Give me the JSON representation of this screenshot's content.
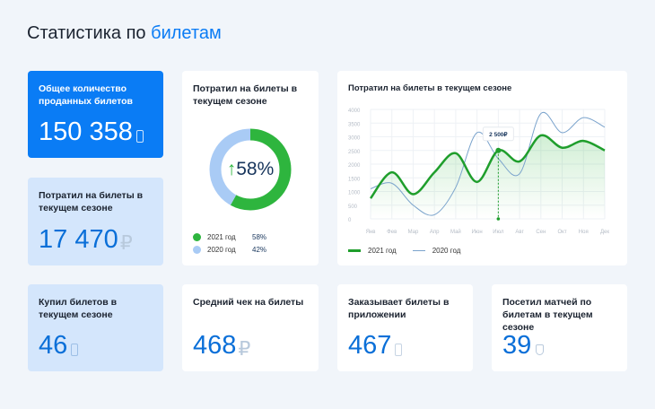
{
  "title": {
    "text": "Статистика по",
    "accent": "билетам"
  },
  "cards": {
    "total": {
      "label": "Общее количество проданных билетов",
      "value": "150 358",
      "icon": "ticket-icon"
    },
    "spent": {
      "label": "Потратил на билеты в текущем сезоне",
      "value": "17 470",
      "unit": "₽"
    },
    "bought": {
      "label": "Купил билетов в текущем сезоне",
      "value": "46",
      "icon": "ticket-icon"
    },
    "avg": {
      "label": "Средний чек на билеты",
      "value": "468",
      "unit": "₽"
    },
    "app": {
      "label": "Заказывает билеты в приложении",
      "value": "467",
      "icon": "ticket-icon"
    },
    "matches": {
      "label": "Посетил матчей по билетам в текущем сезоне",
      "value": "39",
      "icon": "shield-icon"
    }
  },
  "donut": {
    "label": "Потратил на билеты в текущем сезоне",
    "center": "58%",
    "legend": [
      {
        "name": "2021 год",
        "value": "58%",
        "pct": 58,
        "color": "#2eb53e"
      },
      {
        "name": "2020 год",
        "value": "42%",
        "pct": 42,
        "color": "#a9cbf5"
      }
    ]
  },
  "chart_data": {
    "type": "line",
    "title": "Потратил на билеты в текущем сезоне",
    "categories": [
      "Янв",
      "Фев",
      "Мар",
      "Апр",
      "Май",
      "Июн",
      "Июл",
      "Авг",
      "Сен",
      "Окт",
      "Ноя",
      "Дек"
    ],
    "ylim": [
      0,
      4000
    ],
    "yticks": [
      "0",
      "500",
      "1000",
      "1500",
      "2000",
      "2500",
      "3000",
      "3500",
      "4000"
    ],
    "series": [
      {
        "name": "2021 год",
        "color": "#1f9e2c",
        "values": [
          750,
          1700,
          900,
          1700,
          2400,
          1350,
          2500,
          2100,
          3050,
          2600,
          2850,
          2500
        ]
      },
      {
        "name": "2020 год",
        "color": "#7aa3cc",
        "values": [
          1100,
          1300,
          500,
          150,
          1150,
          3150,
          2200,
          1650,
          3850,
          3150,
          3700,
          3350
        ]
      }
    ],
    "tooltip": {
      "category": "Июл",
      "label": "2 500₽"
    }
  }
}
